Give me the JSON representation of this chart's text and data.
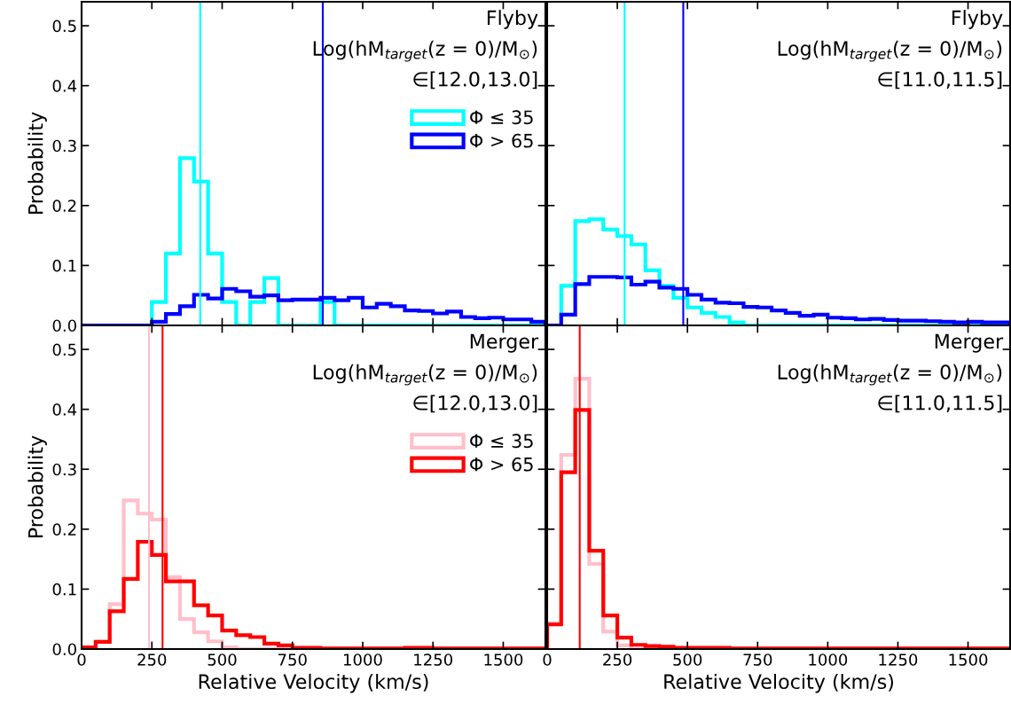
{
  "chart_data": [
    {
      "type": "histogram",
      "ylabel": "Probability",
      "tick_labels": "y",
      "legend": "top right",
      "xlim": [
        0,
        1650
      ],
      "ylim": [
        0,
        0.54
      ],
      "xticks": [
        0,
        250,
        500,
        750,
        1000,
        1250,
        1500
      ],
      "yticks": [
        {
          "value": 0,
          "label": "0.0"
        },
        {
          "value": 0.1,
          "label": "0.1"
        },
        {
          "value": 0.2,
          "label": "0.2"
        },
        {
          "value": 0.3,
          "label": "0.3"
        },
        {
          "value": 0.4,
          "label": "0.4"
        },
        {
          "value": 0.5,
          "label": "0.5"
        }
      ],
      "annotations": [
        "Flyby",
        "Log(hM$_{target}$(z = 0)/M$_{⊙}$)",
        "∈[12.0,13.0]"
      ],
      "bins": [
        0,
        50,
        100,
        150,
        200,
        250,
        300,
        350,
        400,
        450,
        500,
        550,
        600,
        650,
        700,
        750,
        800,
        850,
        900,
        950,
        1000,
        1050,
        1100,
        1150,
        1200,
        1250,
        1300,
        1350,
        1400,
        1450,
        1500,
        1550,
        1600,
        1650
      ],
      "series": [
        {
          "name": "Φ ≤ 35",
          "color": "#00ffff",
          "values": [
            0,
            0,
            0,
            0,
            0,
            0.039,
            0.12,
            0.279,
            0.24,
            0.12,
            0.039,
            0,
            0.039,
            0.079,
            0,
            0,
            0,
            0.039,
            0,
            0,
            0,
            0,
            0,
            0,
            0,
            0,
            0,
            0,
            0,
            0,
            0,
            0,
            0
          ]
        },
        {
          "name": "Φ > 65",
          "color": "#0000ff",
          "values": [
            0,
            0,
            0,
            0,
            0,
            0.006,
            0.019,
            0.032,
            0.051,
            0.045,
            0.061,
            0.057,
            0.048,
            0.05,
            0.042,
            0.043,
            0.043,
            0.046,
            0.042,
            0.046,
            0.03,
            0.036,
            0.032,
            0.025,
            0.024,
            0.02,
            0.023,
            0.014,
            0.012,
            0.013,
            0.01,
            0.01,
            0.006
          ]
        }
      ],
      "ref_lines": [
        {
          "axis": "x",
          "value": 422,
          "color": "#00ffff"
        },
        {
          "axis": "x",
          "value": 858,
          "color": "#0000ff"
        }
      ]
    },
    {
      "type": "histogram",
      "tick_labels": false,
      "xlim": [
        0,
        1650
      ],
      "ylim": [
        0,
        0.54
      ],
      "xticks": [
        0,
        250,
        500,
        750,
        1000,
        1250,
        1500
      ],
      "yticks": [
        {
          "value": 0,
          "label": null
        },
        {
          "value": 0.1,
          "label": null
        },
        {
          "value": 0.2,
          "label": null
        },
        {
          "value": 0.3,
          "label": null
        },
        {
          "value": 0.4,
          "label": null
        },
        {
          "value": 0.5,
          "label": null
        }
      ],
      "annotations": [
        "Flyby",
        "Log(hM$_{target}$(z = 0)/M$_{⊙}$)",
        "∈[11.0,11.5]"
      ],
      "bins": [
        0,
        50,
        100,
        150,
        200,
        250,
        300,
        350,
        400,
        450,
        500,
        550,
        600,
        650,
        700,
        750,
        800,
        850,
        900,
        950,
        1000,
        1050,
        1100,
        1150,
        1200,
        1250,
        1300,
        1350,
        1400,
        1450,
        1500,
        1550,
        1600,
        1650
      ],
      "series": [
        {
          "color": "#00ffff",
          "values": [
            0,
            0.066,
            0.174,
            0.177,
            0.16,
            0.149,
            0.135,
            0.092,
            0.066,
            0.046,
            0.03,
            0.021,
            0.014,
            0.005,
            0,
            0,
            0,
            0,
            0,
            0,
            0,
            0,
            0,
            0,
            0,
            0,
            0,
            0,
            0,
            0,
            0,
            0,
            0
          ]
        },
        {
          "color": "#0000ff",
          "values": [
            0,
            0.018,
            0.069,
            0.081,
            0.081,
            0.08,
            0.068,
            0.073,
            0.063,
            0.061,
            0.051,
            0.043,
            0.038,
            0.037,
            0.031,
            0.03,
            0.025,
            0.021,
            0.016,
            0.018,
            0.013,
            0.012,
            0.01,
            0.011,
            0.009,
            0.008,
            0.008,
            0.007,
            0.006,
            0.005,
            0.006,
            0.005,
            0.005
          ]
        }
      ],
      "ref_lines": [
        {
          "axis": "x",
          "value": 276,
          "color": "#00ffff"
        },
        {
          "axis": "x",
          "value": 485,
          "color": "#0000ff"
        }
      ]
    },
    {
      "type": "histogram",
      "xlabel": "Relative Velocity (km/s)",
      "ylabel": "Probability",
      "legend": "top right",
      "xlim": [
        0,
        1650
      ],
      "ylim": [
        0,
        0.54
      ],
      "xticks": [
        0,
        250,
        500,
        750,
        1000,
        1250,
        1500
      ],
      "yticks": [
        {
          "value": 0,
          "label": "0.0"
        },
        {
          "value": 0.1,
          "label": "0.1"
        },
        {
          "value": 0.2,
          "label": "0.2"
        },
        {
          "value": 0.3,
          "label": "0.3"
        },
        {
          "value": 0.4,
          "label": "0.4"
        },
        {
          "value": 0.5,
          "label": "0.5"
        }
      ],
      "annotations": [
        "Merger",
        "Log(hM$_{target}$(z = 0)/M$_{⊙}$)",
        "∈[12.0,13.0]"
      ],
      "bins": [
        0,
        50,
        100,
        150,
        200,
        250,
        300,
        350,
        400,
        450,
        500,
        550,
        600,
        650,
        700,
        750,
        800,
        850,
        900,
        950,
        1000,
        1050,
        1100,
        1150,
        1200,
        1250,
        1300,
        1350,
        1400,
        1450,
        1500,
        1550,
        1600,
        1650
      ],
      "series": [
        {
          "name": "Φ ≤ 35",
          "color": "#ffc0cb",
          "values": [
            0,
            0.012,
            0.075,
            0.248,
            0.226,
            0.216,
            0.12,
            0.05,
            0.028,
            0.013,
            0.003,
            0,
            0,
            0,
            0,
            0,
            0,
            0,
            0,
            0,
            0,
            0,
            0,
            0,
            0,
            0,
            0,
            0,
            0,
            0,
            0,
            0,
            0
          ]
        },
        {
          "name": "Φ > 65",
          "color": "#ff0000",
          "values": [
            0.003,
            0.012,
            0.063,
            0.117,
            0.179,
            0.157,
            0.113,
            0.113,
            0.073,
            0.056,
            0.031,
            0.023,
            0.02,
            0.009,
            0.006,
            0.002,
            0.002,
            0.001,
            0.001,
            0.001,
            0.001,
            0.001,
            0.001,
            0.002,
            0.002,
            0.001,
            0.001,
            0.001,
            0.001,
            0.001,
            0.001,
            0.001,
            0.001
          ]
        }
      ],
      "ref_lines": [
        {
          "axis": "x",
          "value": 240,
          "color": "#ffc0cb"
        },
        {
          "axis": "x",
          "value": 288,
          "color": "#ff0000"
        }
      ]
    },
    {
      "type": "histogram",
      "xlabel": "Relative Velocity (km/s)",
      "tick_labels": "x",
      "xlim": [
        0,
        1650
      ],
      "ylim": [
        0,
        0.54
      ],
      "xticks": [
        0,
        250,
        500,
        750,
        1000,
        1250,
        1500
      ],
      "yticks": [
        {
          "value": 0,
          "label": null
        },
        {
          "value": 0.1,
          "label": null
        },
        {
          "value": 0.2,
          "label": null
        },
        {
          "value": 0.3,
          "label": null
        },
        {
          "value": 0.4,
          "label": null
        },
        {
          "value": 0.5,
          "label": null
        }
      ],
      "annotations": [
        "Merger",
        "Log(hM$_{target}$(z = 0)/M$_{⊙}$)",
        "∈[11.0,11.5]"
      ],
      "bins": [
        0,
        50,
        100,
        150,
        200,
        250,
        300,
        350,
        400,
        450,
        500,
        550,
        600,
        650,
        700,
        750,
        800,
        850,
        900,
        950,
        1000,
        1050,
        1100,
        1150,
        1200,
        1250,
        1300,
        1350,
        1400,
        1450,
        1500,
        1550,
        1600,
        1650
      ],
      "series": [
        {
          "color": "#ffc0cb",
          "values": [
            0.043,
            0.324,
            0.451,
            0.142,
            0.029,
            0.006,
            0,
            0,
            0,
            0,
            0,
            0,
            0,
            0,
            0,
            0,
            0,
            0,
            0,
            0,
            0,
            0,
            0,
            0,
            0,
            0,
            0,
            0,
            0,
            0,
            0,
            0,
            0
          ]
        },
        {
          "color": "#ff0000",
          "values": [
            0.041,
            0.295,
            0.399,
            0.164,
            0.056,
            0.019,
            0.007,
            0.005,
            0.004,
            0.002,
            0.002,
            0.002,
            0.002,
            0.001,
            0.001,
            0.001,
            0.001,
            0.001,
            0.001,
            0.001,
            0.001,
            0.001,
            0.001,
            0.001,
            0.001,
            0.001,
            0.001,
            0.001,
            0.001,
            0.001,
            0.001,
            0.001,
            0.001
          ]
        }
      ],
      "ref_lines": [
        {
          "axis": "x",
          "value": 116,
          "color": "#ff0000"
        }
      ]
    }
  ]
}
